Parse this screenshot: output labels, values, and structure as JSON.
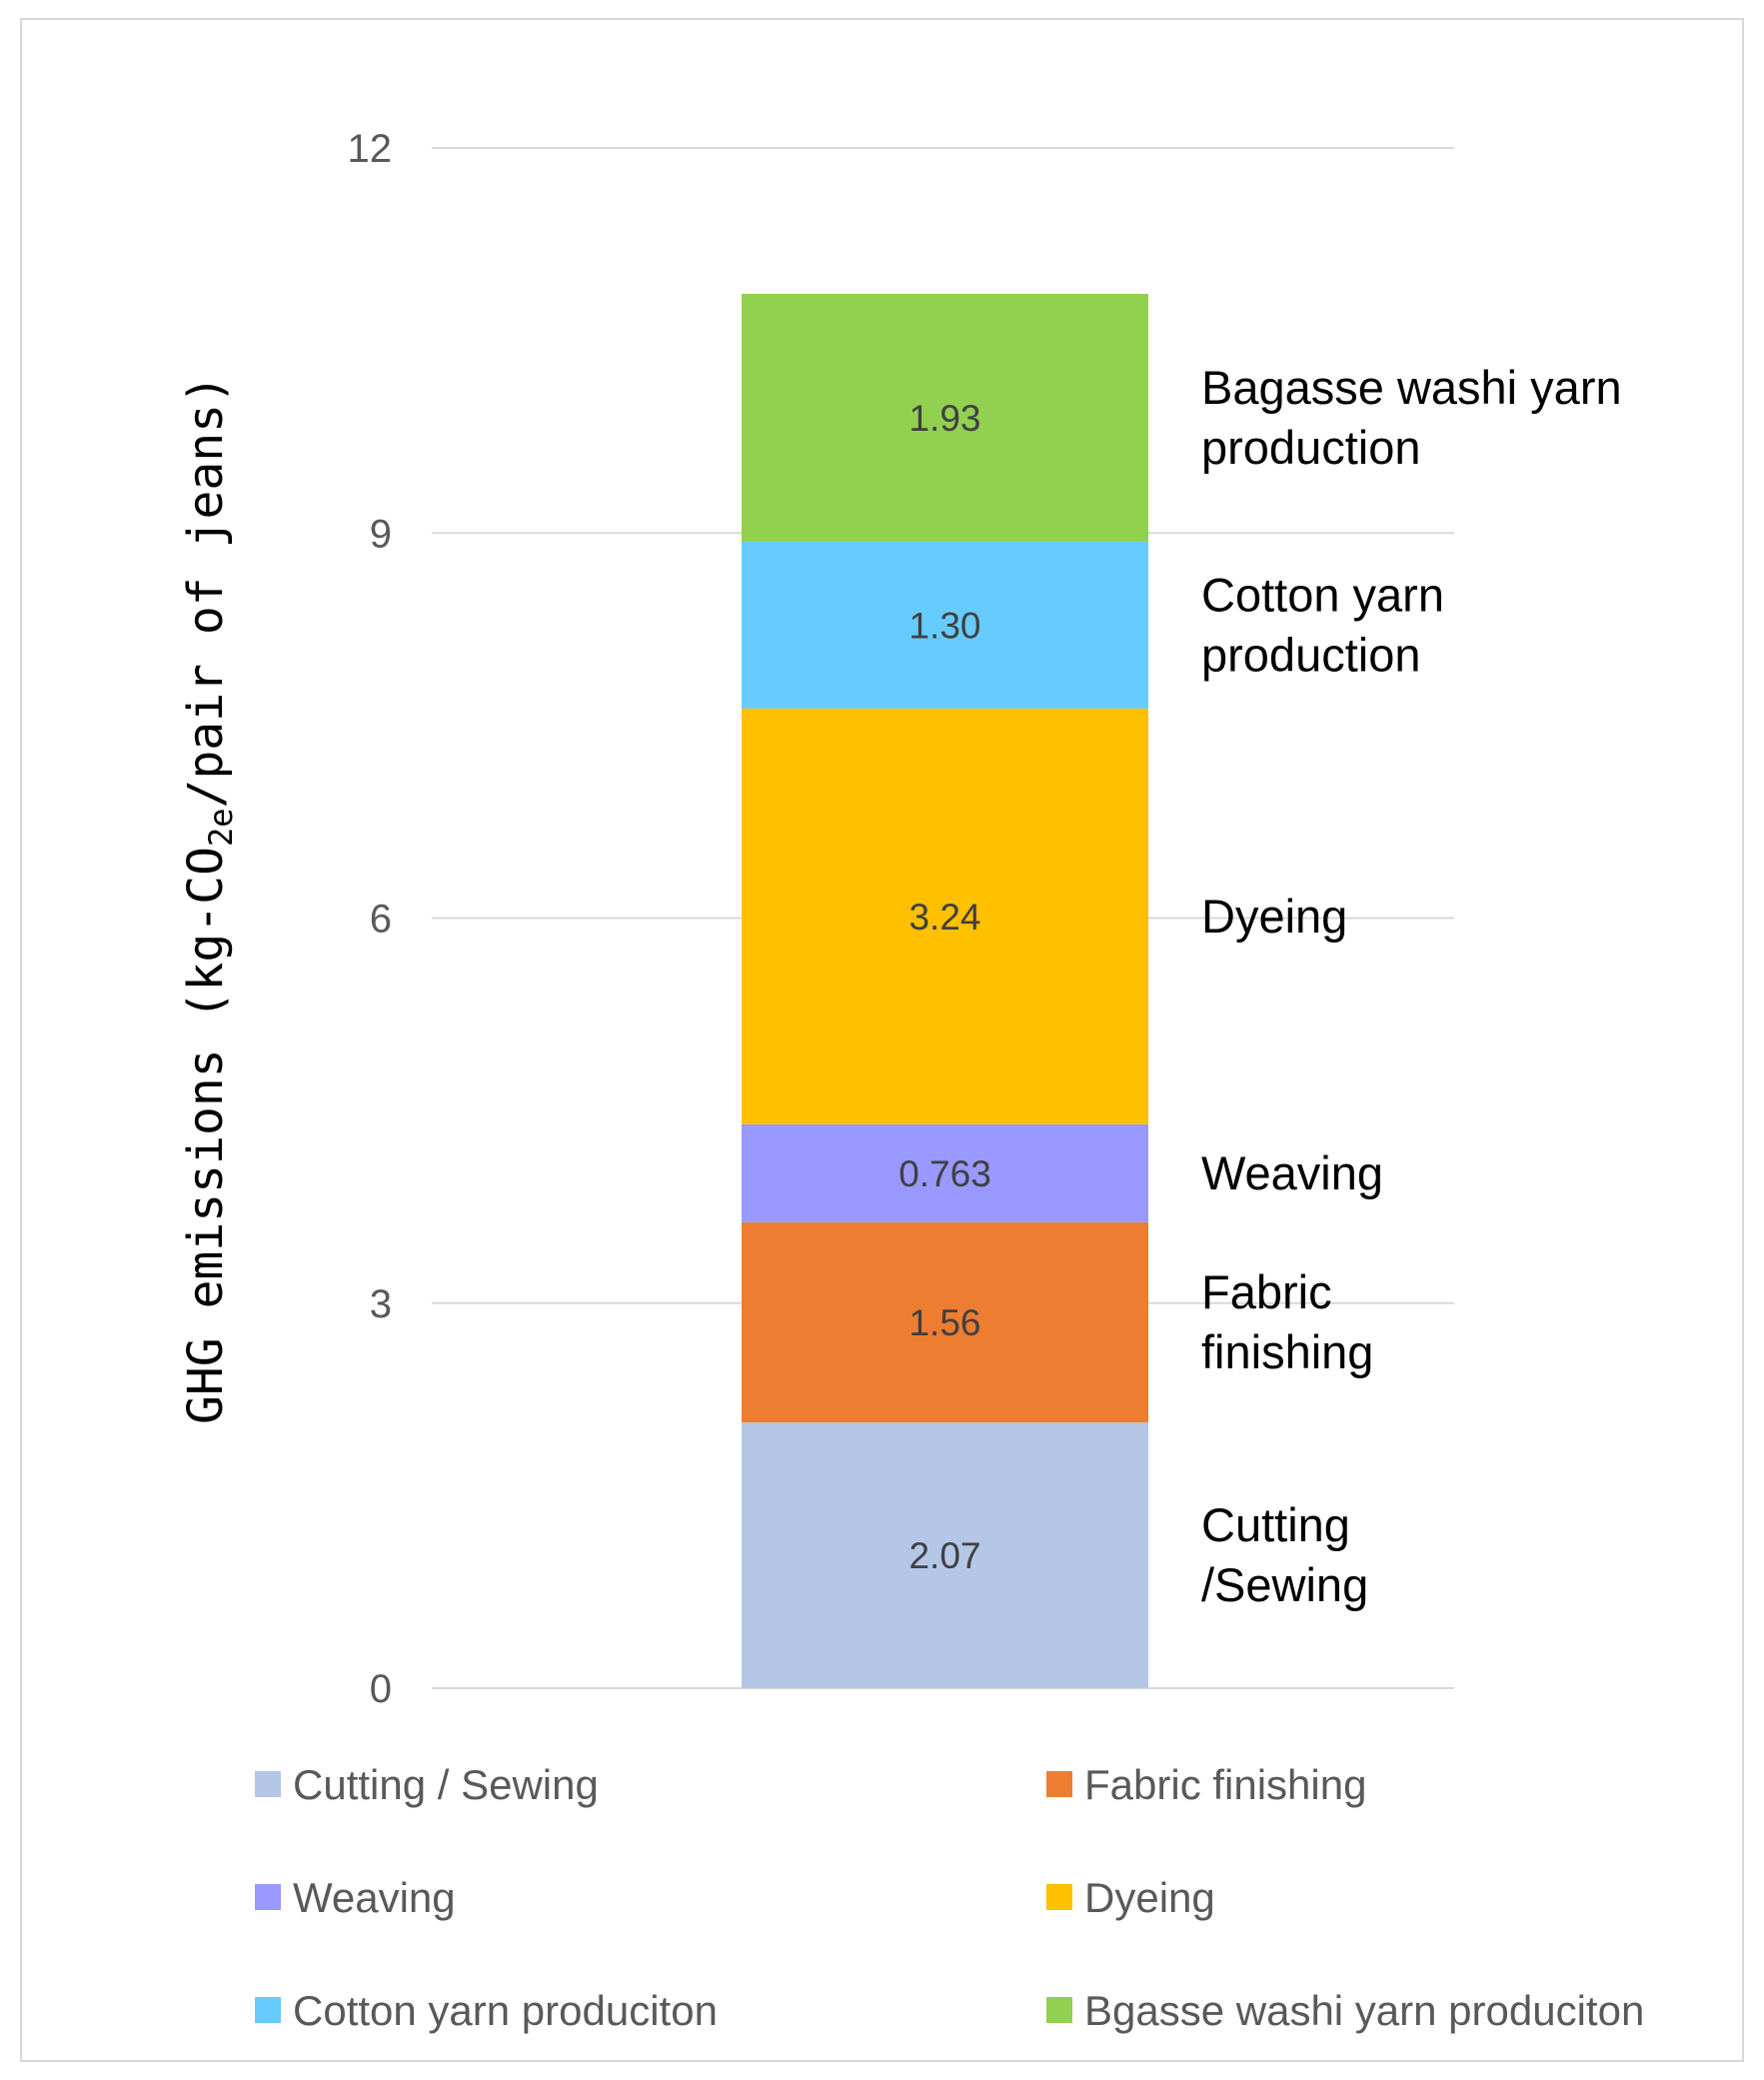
{
  "chart_data": {
    "type": "bar",
    "stacked": true,
    "ylabel": "GHG emissions (kg-CO2e/pair of jeans)",
    "ylabel_parts": {
      "pre": "GHG emissions (kg-CO",
      "sub": "2e",
      "post": "/pair of jeans)"
    },
    "ylim": [
      0,
      12
    ],
    "yticks": [
      0,
      3,
      6,
      9,
      12
    ],
    "ytick_labels": [
      "0",
      "3",
      "6",
      "9",
      "12"
    ],
    "grid": true,
    "legend_position": "bottom",
    "segments": [
      {
        "name": "Cutting / Sewing",
        "value": 2.07,
        "label": "2.07",
        "color": "#b4c7e7",
        "side_label": [
          "Cutting",
          "/Sewing"
        ]
      },
      {
        "name": "Fabric finishing",
        "value": 1.56,
        "label": "1.56",
        "color": "#ed7d31",
        "side_label": [
          "Fabric",
          "finishing"
        ]
      },
      {
        "name": "Weaving",
        "value": 0.763,
        "label": "0.763",
        "color": "#9999ff",
        "side_label": [
          "Weaving"
        ]
      },
      {
        "name": "Dyeing",
        "value": 3.24,
        "label": "3.24",
        "color": "#ffc000",
        "side_label": [
          "Dyeing"
        ]
      },
      {
        "name": "Cotton yarn produciton",
        "value": 1.3,
        "label": "1.30",
        "color": "#66ccff",
        "side_label": [
          "Cotton yarn",
          "production"
        ]
      },
      {
        "name": "Bgasse washi yarn produciton",
        "value": 1.93,
        "label": "1.93",
        "color": "#92d050",
        "side_label": [
          "Bagasse washi yarn",
          "production"
        ]
      }
    ],
    "legend": [
      {
        "label": "Cutting / Sewing",
        "color": "#b4c7e7"
      },
      {
        "label": "Fabric finishing",
        "color": "#ed7d31"
      },
      {
        "label": "Weaving",
        "color": "#9999ff"
      },
      {
        "label": "Dyeing",
        "color": "#ffc000"
      },
      {
        "label": "Cotton yarn produciton",
        "color": "#66ccff"
      },
      {
        "label": "Bgasse washi yarn produciton",
        "color": "#92d050"
      }
    ]
  }
}
